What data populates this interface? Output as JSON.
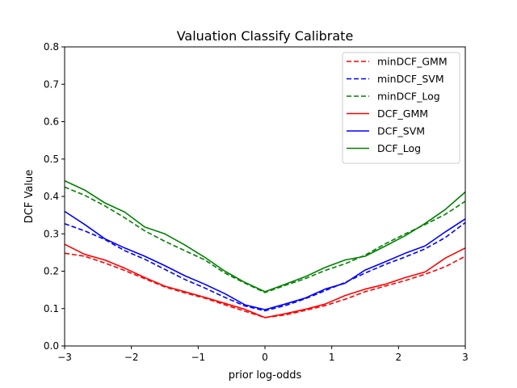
{
  "chart_data": {
    "type": "line",
    "title": "Valuation Classify Calibrate",
    "xlabel": "prior log-odds",
    "ylabel": "DCF Value",
    "xlim": [
      -3,
      3
    ],
    "ylim": [
      0.0,
      0.8
    ],
    "xticks": [
      -3,
      -2,
      -1,
      0,
      1,
      2,
      3
    ],
    "xtick_labels": [
      "−3",
      "−2",
      "−1",
      "0",
      "1",
      "2",
      "3"
    ],
    "yticks": [
      0.0,
      0.1,
      0.2,
      0.3,
      0.4,
      0.5,
      0.6,
      0.7,
      0.8
    ],
    "ytick_labels": [
      "0.0",
      "0.1",
      "0.2",
      "0.3",
      "0.4",
      "0.5",
      "0.6",
      "0.7",
      "0.8"
    ],
    "grid": false,
    "legend": "top-right",
    "x": [
      -3.0,
      -2.7,
      -2.4,
      -2.1,
      -1.8,
      -1.5,
      -1.2,
      -0.9,
      -0.6,
      -0.3,
      0.0,
      0.3,
      0.6,
      0.9,
      1.2,
      1.5,
      1.8,
      2.1,
      2.4,
      2.7,
      3.0
    ],
    "series": [
      {
        "name": "minDCF_GMM",
        "color": "#ff0000",
        "style": "dashed",
        "values": [
          0.248,
          0.24,
          0.222,
          0.202,
          0.18,
          0.158,
          0.142,
          0.128,
          0.11,
          0.093,
          0.076,
          0.083,
          0.095,
          0.108,
          0.125,
          0.145,
          0.16,
          0.175,
          0.192,
          0.212,
          0.24
        ]
      },
      {
        "name": "minDCF_SVM",
        "color": "#0000ff",
        "style": "dashed",
        "values": [
          0.327,
          0.308,
          0.285,
          0.255,
          0.232,
          0.205,
          0.178,
          0.155,
          0.13,
          0.107,
          0.094,
          0.108,
          0.126,
          0.148,
          0.17,
          0.195,
          0.218,
          0.238,
          0.26,
          0.29,
          0.33
        ]
      },
      {
        "name": "minDCF_Log",
        "color": "#008000",
        "style": "dashed",
        "values": [
          0.425,
          0.403,
          0.375,
          0.343,
          0.308,
          0.28,
          0.255,
          0.23,
          0.195,
          0.168,
          0.143,
          0.162,
          0.18,
          0.202,
          0.22,
          0.243,
          0.273,
          0.3,
          0.325,
          0.352,
          0.387
        ]
      },
      {
        "name": "DCF_GMM",
        "color": "#ff0000",
        "style": "solid",
        "values": [
          0.272,
          0.245,
          0.23,
          0.208,
          0.183,
          0.16,
          0.145,
          0.13,
          0.114,
          0.098,
          0.076,
          0.086,
          0.098,
          0.112,
          0.135,
          0.152,
          0.165,
          0.183,
          0.198,
          0.235,
          0.262
        ]
      },
      {
        "name": "DCF_SVM",
        "color": "#0000ff",
        "style": "solid",
        "values": [
          0.36,
          0.325,
          0.287,
          0.262,
          0.24,
          0.215,
          0.188,
          0.165,
          0.14,
          0.11,
          0.097,
          0.112,
          0.128,
          0.152,
          0.168,
          0.203,
          0.225,
          0.248,
          0.268,
          0.305,
          0.34
        ]
      },
      {
        "name": "DCF_Log",
        "color": "#008000",
        "style": "solid",
        "values": [
          0.442,
          0.417,
          0.383,
          0.358,
          0.318,
          0.3,
          0.27,
          0.237,
          0.2,
          0.17,
          0.145,
          0.165,
          0.185,
          0.21,
          0.23,
          0.24,
          0.267,
          0.295,
          0.328,
          0.365,
          0.412
        ]
      }
    ]
  }
}
